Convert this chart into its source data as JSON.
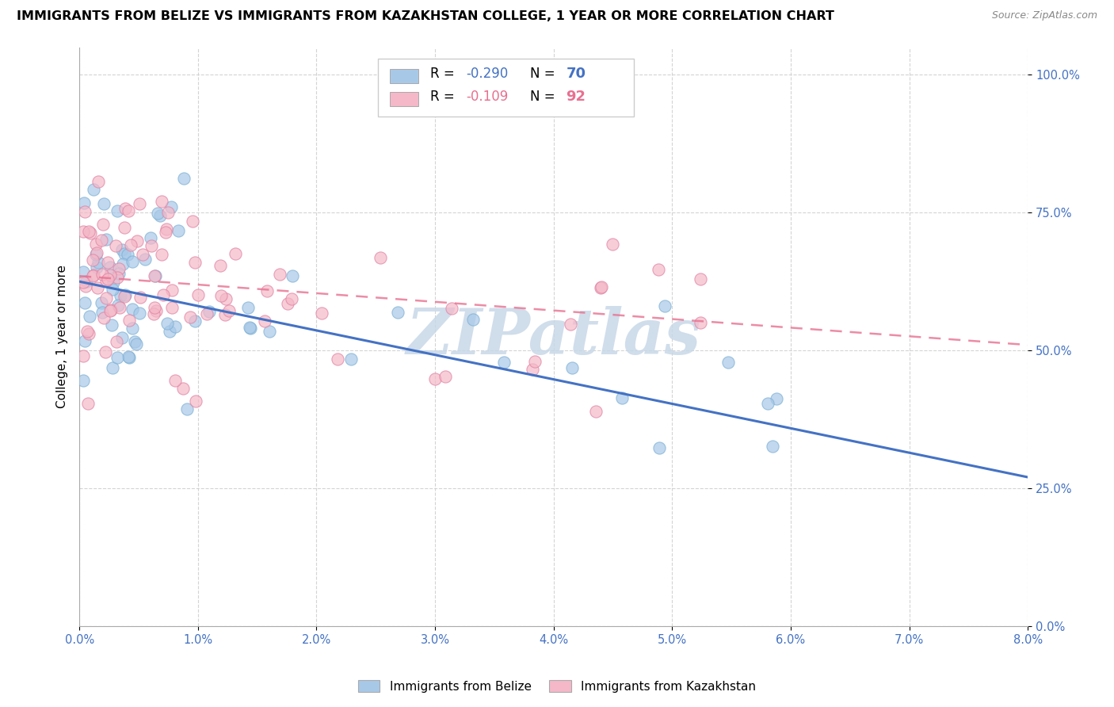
{
  "title": "IMMIGRANTS FROM BELIZE VS IMMIGRANTS FROM KAZAKHSTAN COLLEGE, 1 YEAR OR MORE CORRELATION CHART",
  "source": "Source: ZipAtlas.com",
  "ylabel": "College, 1 year or more",
  "xlim": [
    0.0,
    0.08
  ],
  "ylim": [
    0.0,
    1.05
  ],
  "belize_R": -0.29,
  "belize_N": 70,
  "kazakhstan_R": -0.109,
  "kazakhstan_N": 92,
  "belize_marker_color": "#a8c8e8",
  "belize_marker_edge": "#7aafd4",
  "kazakhstan_marker_color": "#f4b8c8",
  "kazakhstan_marker_edge": "#e080a0",
  "belize_line_color": "#4472c4",
  "kazakhstan_line_color": "#e87090",
  "watermark": "ZIPatlas",
  "watermark_color": "#c8d8e8",
  "belize_line_y0": 0.625,
  "belize_line_y1": 0.27,
  "kazakhstan_line_y0": 0.635,
  "kazakhstan_line_y1": 0.51,
  "legend_R_color": "#4472c4",
  "legend_N_color": "#4472c4",
  "legend_R2_color": "#e87090",
  "legend_N2_color": "#e87090"
}
